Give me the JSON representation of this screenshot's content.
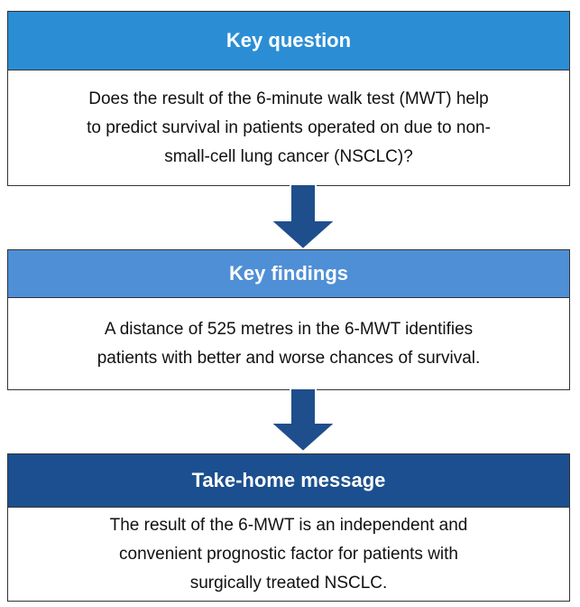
{
  "boxes": [
    {
      "header": "Key question",
      "lines": [
        "Does the result of the 6-minute walk test (MWT) help",
        "to predict survival in patients operated on due to non-",
        "small-cell lung cancer (NSCLC)?"
      ]
    },
    {
      "header": "Key findings",
      "lines": [
        "A distance of 525 metres in the 6-MWT identifies",
        "patients with better and worse chances of survival."
      ]
    },
    {
      "header": "Take-home message",
      "lines": [
        "The result of the 6-MWT is an independent and",
        "convenient prognostic factor for patients with",
        "surgically treated NSCLC."
      ]
    }
  ]
}
